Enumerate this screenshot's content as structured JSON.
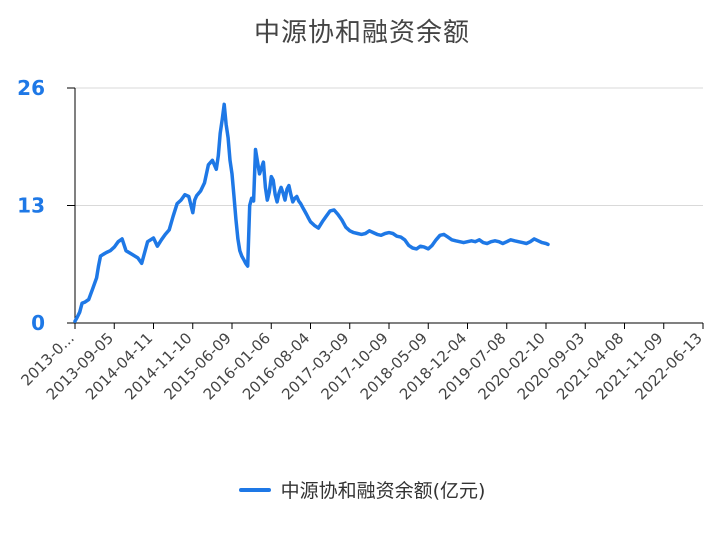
{
  "title": "中源协和融资余额",
  "colors": {
    "series": "#1e78e6",
    "grid": "#d9d9d9",
    "axis": "#000000",
    "ytick_text": "#1e78e6",
    "xtick_text": "#444444"
  },
  "chart_data": {
    "type": "line",
    "title": "中源协和融资余额",
    "xlabel": "",
    "ylabel": "",
    "ylim": [
      0,
      26
    ],
    "yticks": [
      "0",
      "13",
      "26"
    ],
    "xticks": [
      "2013-0...",
      "2013-09-05",
      "2014-04-11",
      "2014-11-10",
      "2015-06-09",
      "2016-01-06",
      "2016-08-04",
      "2017-03-09",
      "2017-10-09",
      "2018-05-09",
      "2018-12-04",
      "2019-07-08",
      "2020-02-10",
      "2020-09-03",
      "2021-04-08",
      "2021-11-09",
      "2022-06-13"
    ],
    "grid": "horizontal",
    "legend_position": "bottom-center",
    "series": [
      {
        "name": "中源协和融资余额(亿元)",
        "x": [
          0,
          0.05,
          0.12,
          0.18,
          0.25,
          0.35,
          0.45,
          0.55,
          0.6,
          0.65,
          0.72,
          0.8,
          0.9,
          1.0,
          1.1,
          1.2,
          1.3,
          1.45,
          1.6,
          1.7,
          1.85,
          2.0,
          2.1,
          2.2,
          2.3,
          2.4,
          2.5,
          2.6,
          2.7,
          2.8,
          2.9,
          3.0,
          3.05,
          3.1,
          3.2,
          3.3,
          3.4,
          3.5,
          3.6,
          3.65,
          3.7,
          3.75,
          3.8,
          3.85,
          3.9,
          3.95,
          4.0,
          4.05,
          4.1,
          4.15,
          4.2,
          4.25,
          4.3,
          4.35,
          4.4,
          4.45,
          4.5,
          4.55,
          4.6,
          4.7,
          4.8,
          4.85,
          4.9,
          4.95,
          5.0,
          5.05,
          5.1,
          5.15,
          5.2,
          5.25,
          5.3,
          5.35,
          5.4,
          5.45,
          5.5,
          5.55,
          5.6,
          5.65,
          5.7,
          5.75,
          5.8,
          5.85,
          5.9,
          5.95,
          6.0,
          6.1,
          6.2,
          6.3,
          6.4,
          6.5,
          6.6,
          6.7,
          6.8,
          6.9,
          7.0,
          7.1,
          7.2,
          7.3,
          7.4,
          7.5,
          7.6,
          7.7,
          7.8,
          7.9,
          8.0,
          8.1,
          8.2,
          8.3,
          8.4,
          8.5,
          8.6,
          8.7,
          8.8,
          8.9,
          9.0,
          9.1,
          9.2,
          9.3,
          9.4,
          9.5,
          9.6,
          9.7,
          9.8,
          9.9,
          10.0,
          10.1,
          10.2,
          10.3,
          10.4,
          10.5,
          10.6,
          10.7,
          10.8,
          10.9,
          11.0,
          11.1,
          11.2,
          11.3,
          11.4,
          11.5,
          11.6,
          11.7,
          11.8,
          11.9,
          12.0,
          12.05
        ],
        "y": [
          0.2,
          0.6,
          1.2,
          2.2,
          2.3,
          2.6,
          3.8,
          5.0,
          6.3,
          7.4,
          7.6,
          7.8,
          8.0,
          8.4,
          9.0,
          9.3,
          8.0,
          7.6,
          7.2,
          6.6,
          9.0,
          9.4,
          8.5,
          9.2,
          9.8,
          10.3,
          11.8,
          13.2,
          13.6,
          14.2,
          14.0,
          12.2,
          13.6,
          14.1,
          14.6,
          15.5,
          17.5,
          18.0,
          17.0,
          18.5,
          21.0,
          22.5,
          24.2,
          22.0,
          20.5,
          18.0,
          16.5,
          14.0,
          11.5,
          9.3,
          8.0,
          7.4,
          7.0,
          6.6,
          6.3,
          13.0,
          13.8,
          13.5,
          19.2,
          16.5,
          17.8,
          15.0,
          13.6,
          14.5,
          16.2,
          15.8,
          14.2,
          13.4,
          14.4,
          15.0,
          14.4,
          13.6,
          14.8,
          15.2,
          14.2,
          13.4,
          13.8,
          14.0,
          13.5,
          13.2,
          12.8,
          12.4,
          12.0,
          11.6,
          11.2,
          10.8,
          10.5,
          11.2,
          11.8,
          12.4,
          12.5,
          12.0,
          11.4,
          10.6,
          10.2,
          10.0,
          9.9,
          9.8,
          9.9,
          10.2,
          10.0,
          9.8,
          9.7,
          9.9,
          10.0,
          9.9,
          9.6,
          9.5,
          9.2,
          8.6,
          8.3,
          8.2,
          8.5,
          8.4,
          8.2,
          8.6,
          9.2,
          9.7,
          9.8,
          9.5,
          9.2,
          9.1,
          9.0,
          8.9,
          9.0,
          9.1,
          9.0,
          9.2,
          8.9,
          8.8,
          9.0,
          9.1,
          9.0,
          8.8,
          9.0,
          9.2,
          9.1,
          9.0,
          8.9,
          8.8,
          9.0,
          9.3,
          9.1,
          8.9,
          8.8,
          8.7
        ]
      }
    ]
  }
}
